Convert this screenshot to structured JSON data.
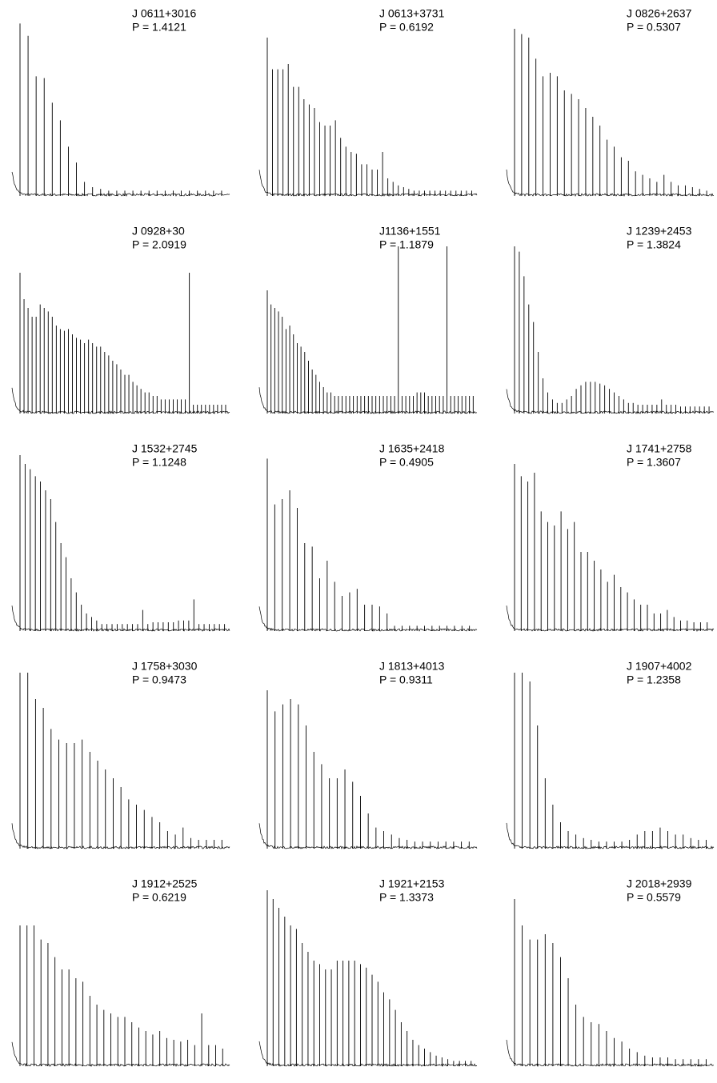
{
  "chart_data": [
    {
      "type": "spectrum",
      "title": "J 0611+3016",
      "subtitle": "P = 1.4121",
      "color": "#000000",
      "ylim": [
        0,
        100
      ],
      "values": [
        98,
        91,
        68,
        67,
        53,
        43,
        28,
        19,
        8,
        5,
        4,
        3,
        3,
        3,
        3,
        3,
        3,
        3,
        3,
        3,
        3,
        3,
        3,
        3,
        3,
        3
      ]
    },
    {
      "type": "spectrum",
      "title": "J 0613+3731",
      "subtitle": "P = 0.6192",
      "color": "#000000",
      "ylim": [
        0,
        100
      ],
      "values": [
        90,
        72,
        72,
        72,
        75,
        62,
        62,
        55,
        52,
        50,
        42,
        40,
        40,
        43,
        33,
        28,
        25,
        24,
        18,
        18,
        15,
        15,
        25,
        10,
        8,
        6,
        5,
        4,
        3,
        3,
        3,
        3,
        3,
        3,
        3,
        3,
        3,
        3,
        3,
        3
      ]
    },
    {
      "type": "spectrum",
      "title": "J 0826+2637",
      "subtitle": "P = 0.5307",
      "color": "#000000",
      "ylim": [
        0,
        100
      ],
      "values": [
        95,
        92,
        90,
        78,
        68,
        70,
        68,
        60,
        58,
        55,
        50,
        45,
        40,
        32,
        28,
        22,
        20,
        14,
        12,
        10,
        8,
        12,
        8,
        6,
        6,
        5,
        4,
        3
      ]
    },
    {
      "type": "spectrum",
      "title": "J 0928+30",
      "subtitle": "P = 2.0919",
      "color": "#000000",
      "ylim": [
        0,
        100
      ],
      "values": [
        80,
        65,
        60,
        55,
        55,
        62,
        60,
        58,
        55,
        50,
        48,
        47,
        48,
        45,
        43,
        42,
        40,
        42,
        40,
        38,
        38,
        35,
        33,
        30,
        28,
        25,
        22,
        22,
        18,
        16,
        14,
        12,
        12,
        10,
        10,
        8,
        8,
        8,
        8,
        8,
        8,
        8,
        80,
        5,
        5,
        5,
        5,
        5,
        5,
        5,
        5,
        5
      ]
    },
    {
      "type": "spectrum",
      "title": "J1136+1551",
      "subtitle": "P = 1.1879",
      "color": "#000000",
      "ylim": [
        0,
        100
      ],
      "values": [
        70,
        62,
        60,
        58,
        55,
        48,
        50,
        45,
        40,
        38,
        35,
        30,
        25,
        22,
        18,
        15,
        12,
        12,
        10,
        10,
        10,
        10,
        10,
        10,
        10,
        10,
        10,
        10,
        10,
        10,
        10,
        10,
        10,
        10,
        10,
        95,
        10,
        10,
        10,
        10,
        12,
        12,
        12,
        10,
        10,
        10,
        10,
        10,
        95,
        10,
        10,
        10,
        10,
        10,
        10,
        10
      ]
    },
    {
      "type": "spectrum",
      "title": "J 1239+2453",
      "subtitle": "P = 1.3824",
      "color": "#000000",
      "ylim": [
        0,
        100
      ],
      "values": [
        95,
        92,
        78,
        62,
        52,
        35,
        20,
        12,
        8,
        6,
        6,
        8,
        10,
        14,
        16,
        18,
        18,
        18,
        17,
        16,
        14,
        12,
        10,
        8,
        6,
        6,
        5,
        5,
        5,
        5,
        5,
        8,
        5,
        5,
        5,
        4,
        4,
        4,
        4,
        4,
        4,
        4
      ]
    },
    {
      "type": "spectrum",
      "title": "J 1532+2745",
      "subtitle": "P = 1.1248",
      "color": "#000000",
      "ylim": [
        0,
        100
      ],
      "values": [
        100,
        95,
        92,
        88,
        85,
        80,
        75,
        62,
        50,
        42,
        30,
        22,
        15,
        10,
        8,
        6,
        4,
        4,
        4,
        4,
        4,
        4,
        4,
        4,
        12,
        4,
        5,
        5,
        5,
        5,
        5,
        6,
        6,
        6,
        18,
        4,
        4,
        4,
        4,
        4,
        4
      ]
    },
    {
      "type": "spectrum",
      "title": "J 1635+2418",
      "subtitle": "P = 0.4905",
      "color": "#000000",
      "ylim": [
        0,
        100
      ],
      "values": [
        98,
        72,
        75,
        80,
        70,
        50,
        48,
        30,
        40,
        28,
        20,
        22,
        24,
        15,
        15,
        14,
        10,
        3,
        3,
        3,
        3,
        3,
        3,
        3,
        3,
        3,
        3,
        3
      ]
    },
    {
      "type": "spectrum",
      "title": "J 1741+2758",
      "subtitle": "P = 1.3607",
      "color": "#000000",
      "ylim": [
        0,
        100
      ],
      "values": [
        95,
        88,
        85,
        90,
        68,
        62,
        60,
        68,
        58,
        62,
        45,
        45,
        40,
        35,
        28,
        32,
        25,
        22,
        18,
        15,
        15,
        10,
        10,
        12,
        8,
        6,
        6,
        5,
        5,
        5
      ]
    },
    {
      "type": "spectrum",
      "title": "J 1758+3030",
      "subtitle": "P = 0.9473",
      "color": "#000000",
      "ylim": [
        0,
        100
      ],
      "values": [
        100,
        100,
        85,
        80,
        68,
        62,
        60,
        60,
        62,
        55,
        50,
        45,
        40,
        35,
        28,
        25,
        22,
        18,
        15,
        10,
        8,
        12,
        6,
        5,
        5,
        5,
        5
      ]
    },
    {
      "type": "spectrum",
      "title": "J 1813+4013",
      "subtitle": "P = 0.9311",
      "color": "#000000",
      "ylim": [
        0,
        100
      ],
      "values": [
        90,
        78,
        82,
        85,
        82,
        70,
        55,
        48,
        40,
        40,
        45,
        38,
        30,
        20,
        12,
        10,
        8,
        6,
        5,
        4,
        4,
        4,
        4,
        4,
        4,
        4,
        4
      ]
    },
    {
      "type": "spectrum",
      "title": "J 1907+4002",
      "subtitle": "P = 1.2358",
      "color": "#000000",
      "ylim": [
        0,
        100
      ],
      "values": [
        100,
        100,
        95,
        70,
        40,
        25,
        15,
        10,
        8,
        6,
        5,
        4,
        4,
        4,
        4,
        5,
        8,
        10,
        10,
        12,
        10,
        8,
        8,
        6,
        5,
        5
      ]
    },
    {
      "type": "spectrum",
      "title": "J 1912+2525",
      "subtitle": "P = 0.6219",
      "color": "#000000",
      "ylim": [
        0,
        100
      ],
      "values": [
        80,
        80,
        80,
        72,
        70,
        62,
        55,
        55,
        50,
        48,
        40,
        35,
        32,
        30,
        28,
        28,
        25,
        22,
        20,
        18,
        20,
        16,
        15,
        14,
        15,
        12,
        30,
        12,
        12,
        10
      ]
    },
    {
      "type": "spectrum",
      "title": "J 1921+2153",
      "subtitle": "P = 1.3373",
      "color": "#000000",
      "ylim": [
        0,
        100
      ],
      "values": [
        100,
        95,
        90,
        85,
        80,
        78,
        70,
        65,
        60,
        58,
        55,
        55,
        60,
        60,
        60,
        60,
        58,
        56,
        52,
        48,
        42,
        38,
        32,
        25,
        20,
        15,
        12,
        10,
        8,
        6,
        5,
        4,
        3,
        3,
        3,
        3
      ]
    },
    {
      "type": "spectrum",
      "title": "J 2018+2939",
      "subtitle": "P = 0.5579",
      "color": "#000000",
      "ylim": [
        0,
        100
      ],
      "values": [
        95,
        80,
        72,
        72,
        75,
        70,
        62,
        50,
        35,
        28,
        25,
        24,
        20,
        16,
        14,
        10,
        8,
        6,
        5,
        5,
        5,
        4,
        4,
        4,
        4,
        4
      ]
    }
  ]
}
